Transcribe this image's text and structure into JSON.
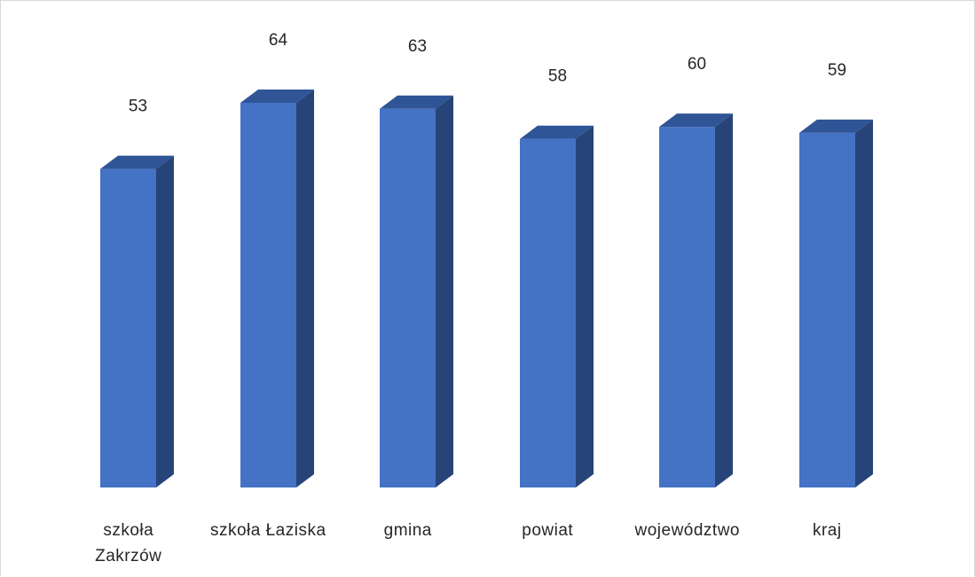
{
  "chart_data": {
    "type": "bar",
    "style": "3d-column",
    "categories": [
      [
        "szkoła",
        "Zakrzów"
      ],
      [
        "szkoła Łaziska"
      ],
      [
        "gmina"
      ],
      [
        "powiat"
      ],
      [
        "województwo"
      ],
      [
        "kraj"
      ]
    ],
    "values": [
      53,
      64,
      63,
      58,
      60,
      59
    ],
    "ylim": [
      0,
      64
    ],
    "colors": {
      "front": "#4472c4",
      "top": "#2f5597",
      "side": "#264478",
      "text": "#262626"
    },
    "grid": false,
    "legend": "none"
  }
}
